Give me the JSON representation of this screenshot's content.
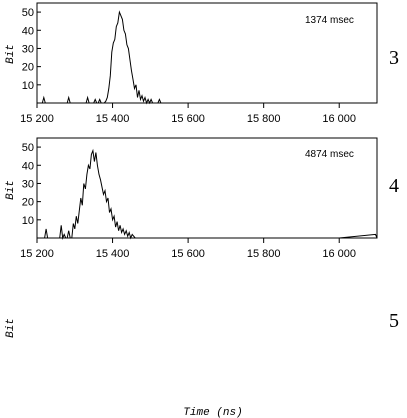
{
  "chart_data": [
    {
      "type": "line",
      "panel_label": "3",
      "annotation": "1374 msec",
      "ylabel": "Bit",
      "xlim": [
        15200,
        16100
      ],
      "ylim": [
        0,
        55
      ],
      "xticks": [
        15200,
        15400,
        15600,
        15800,
        16000
      ],
      "xtick_labels": [
        "15 200",
        "15 400",
        "15 600",
        "15 800",
        "16 000"
      ],
      "yticks": [
        10,
        20,
        30,
        40,
        50
      ],
      "ytick_labels": [
        "10",
        "20",
        "30",
        "40",
        "50"
      ],
      "grid": false,
      "x": [
        15200,
        15214,
        15218,
        15222,
        15226,
        15240,
        15280,
        15284,
        15288,
        15330,
        15334,
        15338,
        15350,
        15354,
        15358,
        15362,
        15366,
        15370,
        15374,
        15378,
        15382,
        15386,
        15390,
        15394,
        15398,
        15402,
        15406,
        15410,
        15414,
        15418,
        15422,
        15426,
        15430,
        15434,
        15438,
        15442,
        15446,
        15450,
        15454,
        15458,
        15462,
        15466,
        15470,
        15474,
        15478,
        15482,
        15486,
        15490,
        15494,
        15498,
        15502,
        15506,
        15510,
        15514,
        15520,
        15524,
        15528,
        15600,
        15700,
        15800,
        15900,
        16000,
        16100
      ],
      "y": [
        0,
        0,
        3,
        0,
        0,
        0,
        0,
        3,
        0,
        0,
        3,
        0,
        0,
        2,
        0,
        0,
        2,
        0,
        0,
        0,
        1,
        3,
        8,
        15,
        28,
        33,
        35,
        42,
        44,
        50,
        48,
        46,
        40,
        38,
        32,
        30,
        24,
        18,
        13,
        8,
        10,
        3,
        7,
        2,
        4,
        1,
        3,
        0,
        2,
        0,
        2,
        0,
        0,
        0,
        0,
        2,
        0,
        0,
        0,
        0,
        0,
        0,
        0
      ]
    },
    {
      "type": "line",
      "panel_label": "4",
      "annotation": "4874 msec",
      "ylabel": "Bit",
      "xlim": [
        15200,
        16100
      ],
      "ylim": [
        0,
        55
      ],
      "xticks": [
        15200,
        15400,
        15600,
        15800,
        16000
      ],
      "xtick_labels": [
        "15 200",
        "15 400",
        "15 600",
        "15 800",
        "16 000"
      ],
      "yticks": [
        10,
        20,
        30,
        40,
        50
      ],
      "ytick_labels": [
        "10",
        "20",
        "30",
        "40",
        "50"
      ],
      "grid": false,
      "x": [
        15200,
        15220,
        15224,
        15228,
        15236,
        15250,
        15260,
        15264,
        15268,
        15272,
        15276,
        15280,
        15284,
        15288,
        15292,
        15296,
        15300,
        15304,
        15308,
        15312,
        15316,
        15320,
        15324,
        15328,
        15332,
        15336,
        15340,
        15344,
        15348,
        15352,
        15356,
        15360,
        15364,
        15368,
        15372,
        15376,
        15380,
        15384,
        15388,
        15392,
        15396,
        15400,
        15404,
        15408,
        15412,
        15416,
        15420,
        15424,
        15428,
        15432,
        15436,
        15440,
        15444,
        15448,
        15452,
        15460,
        15500,
        15600,
        15800,
        16000,
        16096,
        16100
      ],
      "y": [
        0,
        0,
        5,
        0,
        0,
        0,
        0,
        7,
        0,
        2,
        0,
        0,
        4,
        0,
        0,
        8,
        5,
        12,
        8,
        15,
        22,
        18,
        30,
        27,
        35,
        40,
        38,
        46,
        48,
        42,
        47,
        40,
        35,
        32,
        28,
        24,
        26,
        20,
        22,
        14,
        16,
        10,
        12,
        6,
        9,
        4,
        7,
        3,
        5,
        2,
        4,
        1,
        3,
        0,
        2,
        0,
        0,
        0,
        0,
        0,
        2,
        0
      ]
    },
    {
      "panel_label": "5",
      "ylabel": "Bit",
      "xtitle": "Time (ns)"
    }
  ]
}
